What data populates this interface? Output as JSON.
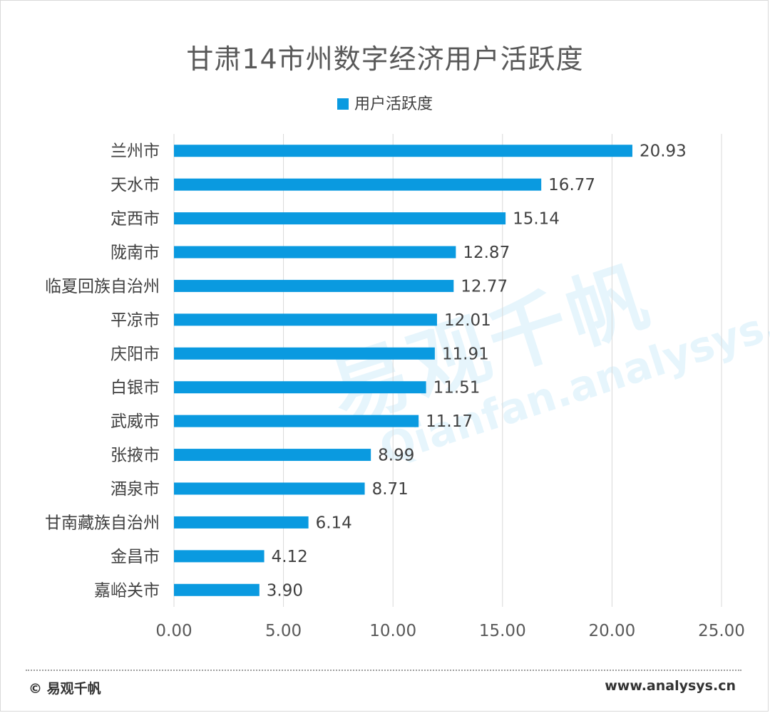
{
  "chart_data": {
    "type": "bar",
    "orientation": "horizontal",
    "title": "甘肃14市州数字经济用户活跃度",
    "legend_position": "top",
    "categories": [
      "兰州市",
      "天水市",
      "定西市",
      "陇南市",
      "临夏回族自治州",
      "平凉市",
      "庆阳市",
      "白银市",
      "武威市",
      "张掖市",
      "酒泉市",
      "甘南藏族自治州",
      "金昌市",
      "嘉峪关市"
    ],
    "series": [
      {
        "name": "用户活跃度",
        "color": "#0a9ae0",
        "values": [
          20.93,
          16.77,
          15.14,
          12.87,
          12.77,
          12.01,
          11.91,
          11.51,
          11.17,
          8.99,
          8.71,
          6.14,
          4.12,
          3.9
        ],
        "labels": [
          "20.93",
          "16.77",
          "15.14",
          "12.87",
          "12.77",
          "12.01",
          "11.91",
          "11.51",
          "11.17",
          "8.99",
          "8.71",
          "6.14",
          "4.12",
          "3.90"
        ]
      }
    ],
    "xlim": [
      0,
      25
    ],
    "xticks": [
      "0.00",
      "5.00",
      "10.00",
      "15.00",
      "20.00",
      "25.00"
    ],
    "grid": true
  },
  "watermark": {
    "cn": "易观千帆",
    "en": "Qianfan.analysys.cn"
  },
  "footer": {
    "left": "© 易观千帆",
    "right": "www.analysys.cn"
  }
}
